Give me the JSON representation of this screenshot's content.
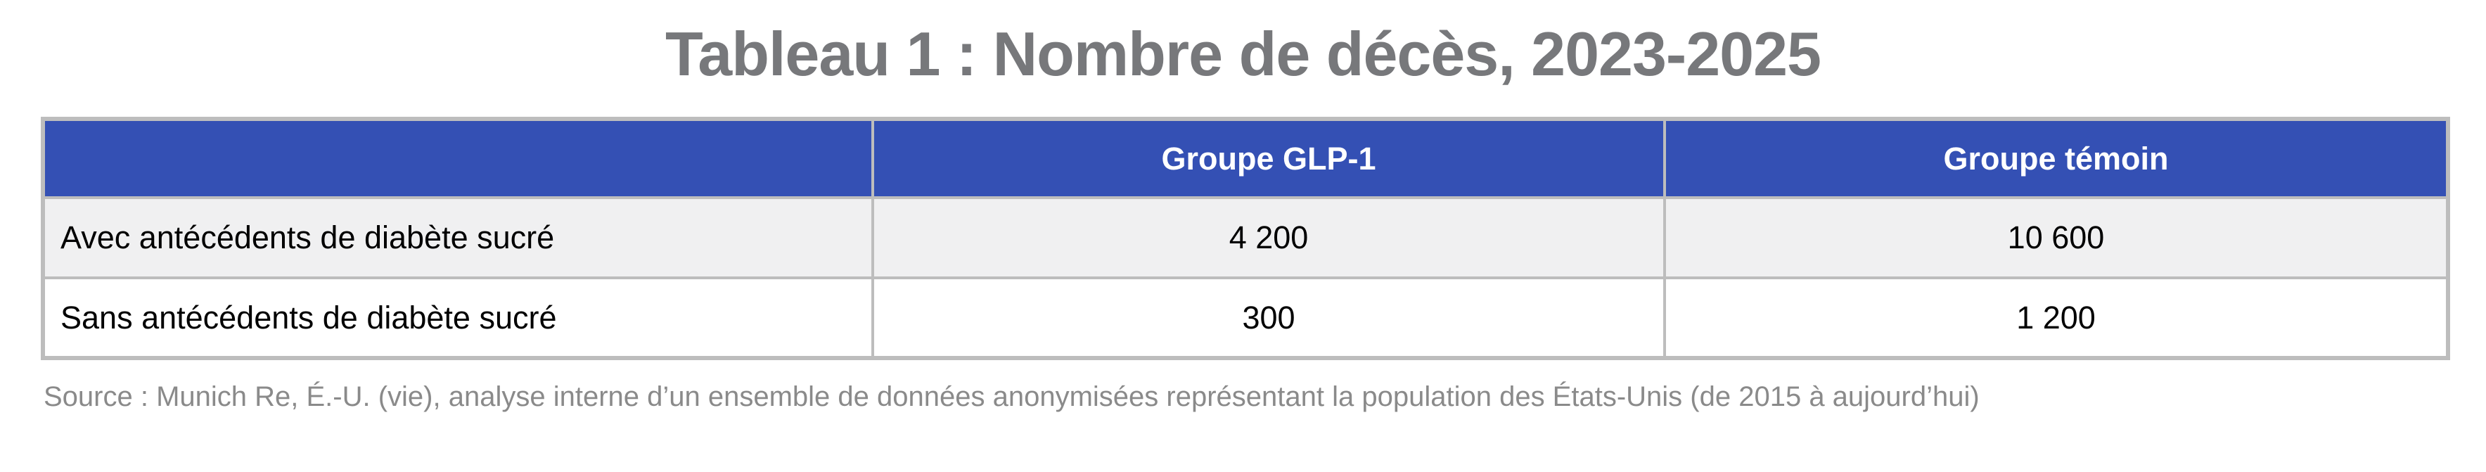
{
  "title": "Tableau 1 : Nombre de décès, 2023-2025",
  "table": {
    "columns": [
      "",
      "Groupe GLP-1",
      "Groupe témoin"
    ],
    "rows": [
      {
        "label": "Avec antécédents de diabète sucré",
        "values": [
          "4 200",
          "10 600"
        ]
      },
      {
        "label": "Sans antécédents de diabète sucré",
        "values": [
          "300",
          "1 200"
        ]
      }
    ]
  },
  "source": "Source : Munich Re, É.-U. (vie), analyse interne d’un ensemble de données anonymisées représentant la population des États-Unis (de 2015 à aujourd’hui)",
  "colors": {
    "header_bg": "#3450b4",
    "header_text": "#ffffff",
    "row_alt_bg": "#f0f0f1",
    "row_bg": "#ffffff",
    "border": "#bdbdbd",
    "title_text": "#77787b",
    "source_text": "#8a8a8a",
    "cell_text": "#000000"
  },
  "chart_data": {
    "type": "table",
    "title": "Tableau 1 : Nombre de décès, 2023-2025",
    "columns": [
      "",
      "Groupe GLP-1",
      "Groupe témoin"
    ],
    "rows": [
      [
        "Avec antécédents de diabète sucré",
        4200,
        10600
      ],
      [
        "Sans antécédents de diabète sucré",
        300,
        1200
      ]
    ]
  }
}
